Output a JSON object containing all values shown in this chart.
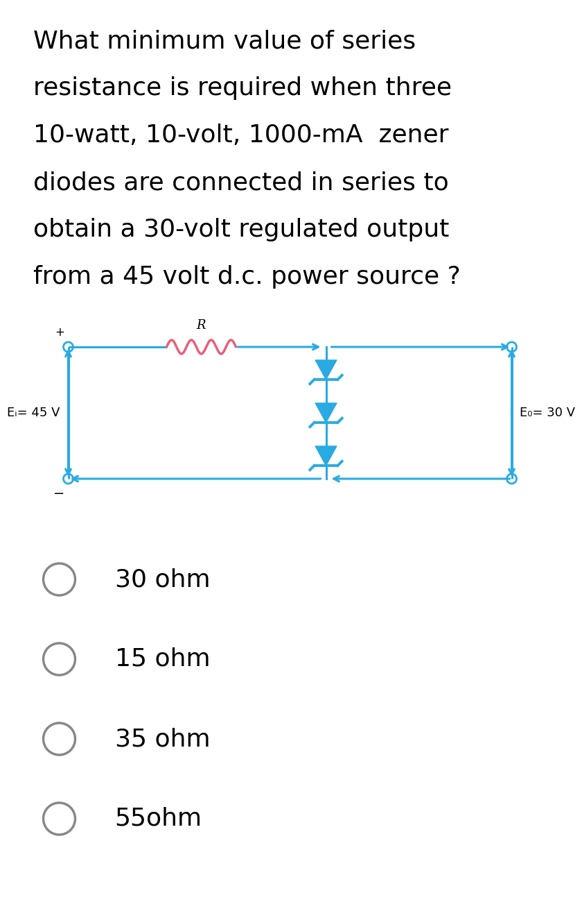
{
  "question_lines": [
    "What minimum value of series",
    "resistance is required when three",
    "10-watt, 10-volt, 1000-mA  zener",
    "diodes are connected in series to",
    "obtain a 30-volt regulated output",
    "from a 45 volt d.c. power source ?"
  ],
  "circuit_color": "#29ABE2",
  "resistor_color": "#E8607A",
  "zener_color": "#29ABE2",
  "label_ei": "Eᵢ= 45 V",
  "label_eo": "E₀= 30 V",
  "label_r": "R",
  "options": [
    "30 ohm",
    "15 ohm",
    "35 ohm",
    "55ohm"
  ],
  "bg_color": "#ffffff",
  "text_color": "#000000",
  "option_circle_color": "#888888",
  "question_fontsize": 26,
  "option_fontsize": 26,
  "label_fontsize": 13,
  "r_label_fontsize": 13
}
